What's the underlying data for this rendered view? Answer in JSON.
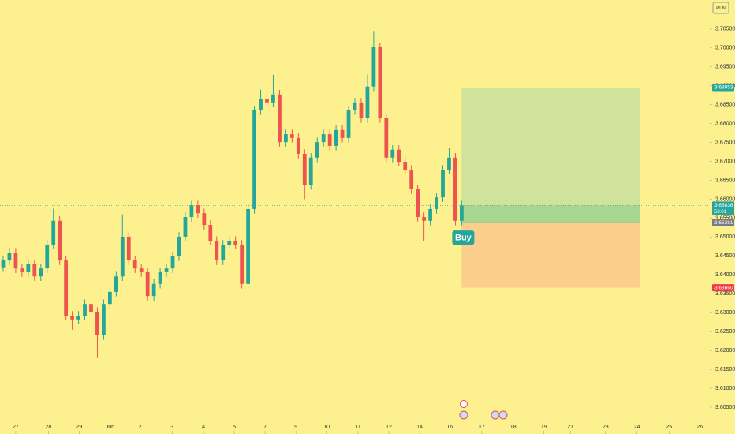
{
  "chart_data": {
    "type": "candlestick",
    "currency": "PLN",
    "colors": {
      "up": "#26a69a",
      "down": "#ef5350",
      "background": "#fcf18e"
    },
    "xlim": [
      0,
      113
    ],
    "xticks": [
      {
        "value": 2.5,
        "label": "27"
      },
      {
        "value": 7.7,
        "label": "28"
      },
      {
        "value": 12.6,
        "label": "29"
      },
      {
        "value": 17.5,
        "label": "Jun"
      },
      {
        "value": 22.3,
        "label": "2"
      },
      {
        "value": 27.4,
        "label": "3"
      },
      {
        "value": 32.4,
        "label": "4"
      },
      {
        "value": 37.3,
        "label": "5"
      },
      {
        "value": 42.2,
        "label": "7"
      },
      {
        "value": 47.1,
        "label": "9"
      },
      {
        "value": 52,
        "label": "10"
      },
      {
        "value": 57,
        "label": "11"
      },
      {
        "value": 61.9,
        "label": "12"
      },
      {
        "value": 66.8,
        "label": "14"
      },
      {
        "value": 71.6,
        "label": "16"
      },
      {
        "value": 76.7,
        "label": "17"
      },
      {
        "value": 81.7,
        "label": "18"
      },
      {
        "value": 86.6,
        "label": "19"
      },
      {
        "value": 90.8,
        "label": "21"
      },
      {
        "value": 96.4,
        "label": "23"
      },
      {
        "value": 101.4,
        "label": "24"
      },
      {
        "value": 106.5,
        "label": "25"
      },
      {
        "value": 111.4,
        "label": "26"
      }
    ],
    "ylim": [
      3.5979,
      3.7127
    ],
    "yticks": [
      {
        "value": 3.605,
        "label": "3.60500"
      },
      {
        "value": 3.61,
        "label": "3.61000"
      },
      {
        "value": 3.615,
        "label": "3.61500"
      },
      {
        "value": 3.62,
        "label": "3.62000"
      },
      {
        "value": 3.625,
        "label": "3.62500"
      },
      {
        "value": 3.63,
        "label": "3.63000"
      },
      {
        "value": 3.635,
        "label": "3.63500"
      },
      {
        "value": 3.64,
        "label": "3.64000"
      },
      {
        "value": 3.645,
        "label": "3.64500"
      },
      {
        "value": 3.65,
        "label": "3.65000"
      },
      {
        "value": 3.655,
        "label": "3.65500"
      },
      {
        "value": 3.66,
        "label": "3.66000"
      },
      {
        "value": 3.665,
        "label": "3.66500"
      },
      {
        "value": 3.67,
        "label": "3.67000"
      },
      {
        "value": 3.675,
        "label": "3.67500"
      },
      {
        "value": 3.68,
        "label": "3.68000"
      },
      {
        "value": 3.685,
        "label": "3.68500"
      },
      {
        "value": 3.69,
        "label": "3.69000"
      },
      {
        "value": 3.695,
        "label": "3.69500"
      },
      {
        "value": 3.7,
        "label": "3.70000"
      },
      {
        "value": 3.705,
        "label": "3.70500"
      }
    ],
    "open": [
      3.642,
      3.6438,
      3.6459,
      3.6417,
      3.6407,
      3.6428,
      3.6396,
      3.6417,
      3.648,
      3.6543,
      3.6438,
      3.6292,
      3.6282,
      3.6292,
      3.6323,
      3.6302,
      3.624,
      3.6323,
      3.6355,
      3.6396,
      3.6501,
      3.6438,
      3.6417,
      3.6407,
      3.6344,
      3.6376,
      3.6407,
      3.6417,
      3.6449,
      3.6501,
      3.6553,
      3.6584,
      3.6563,
      3.6532,
      3.649,
      3.6438,
      3.648,
      3.649,
      3.648,
      3.6376,
      3.6574,
      3.6835,
      3.6866,
      3.6856,
      3.6877,
      3.6751,
      3.6772,
      3.6762,
      3.672,
      3.6637,
      3.671,
      3.6751,
      3.6772,
      3.6741,
      3.6783,
      3.6762,
      3.6835,
      3.6856,
      3.6814,
      3.6898,
      3.7002,
      3.6814,
      3.671,
      3.6731,
      3.6699,
      3.6678,
      3.6626,
      3.6553,
      3.6543,
      3.6574,
      3.6605,
      3.6678,
      3.671,
      3.6543
    ],
    "high": [
      3.645,
      3.6471,
      3.6471,
      3.6429,
      3.644,
      3.644,
      3.6429,
      3.6492,
      3.6575,
      3.6555,
      3.645,
      3.6304,
      3.6304,
      3.6335,
      3.6335,
      3.6314,
      3.6335,
      3.6367,
      3.6408,
      3.656,
      3.6513,
      3.645,
      3.6429,
      3.6419,
      3.6388,
      3.6419,
      3.6429,
      3.6461,
      3.6513,
      3.6565,
      3.6596,
      3.6596,
      3.6575,
      3.6544,
      3.6502,
      3.6492,
      3.6502,
      3.6502,
      3.6492,
      3.6586,
      3.6847,
      3.689,
      3.6878,
      3.6929,
      3.6889,
      3.6784,
      3.6784,
      3.6774,
      3.6732,
      3.6722,
      3.6763,
      3.6784,
      3.6784,
      3.6795,
      3.6795,
      3.6847,
      3.6868,
      3.6868,
      3.693,
      3.7045,
      3.7014,
      3.6826,
      3.6743,
      3.6743,
      3.6711,
      3.669,
      3.6638,
      3.6565,
      3.6586,
      3.6617,
      3.669,
      3.6735,
      3.6722,
      3.6596
    ],
    "low": [
      3.6408,
      3.6426,
      3.6405,
      3.6395,
      3.6395,
      3.6384,
      3.6384,
      3.6405,
      3.6468,
      3.6426,
      3.628,
      3.6255,
      3.627,
      3.628,
      3.629,
      3.618,
      3.6228,
      3.6311,
      3.6343,
      3.6384,
      3.6426,
      3.6405,
      3.6395,
      3.6332,
      3.6332,
      3.6364,
      3.6395,
      3.6405,
      3.6437,
      3.6489,
      3.6541,
      3.6551,
      3.652,
      3.6478,
      3.6426,
      3.6426,
      3.6468,
      3.6468,
      3.6364,
      3.6364,
      3.6562,
      3.6823,
      3.6844,
      3.6844,
      3.6739,
      3.6739,
      3.675,
      3.6708,
      3.66,
      3.6625,
      3.6698,
      3.6739,
      3.6729,
      3.6729,
      3.675,
      3.675,
      3.6823,
      3.6802,
      3.6802,
      3.6886,
      3.6802,
      3.6698,
      3.6698,
      3.6687,
      3.6666,
      3.6614,
      3.6541,
      3.649,
      3.6531,
      3.6562,
      3.6593,
      3.6666,
      3.6531,
      3.6531
    ],
    "close": [
      3.6438,
      3.6459,
      3.6417,
      3.6407,
      3.6428,
      3.6396,
      3.6417,
      3.648,
      3.6543,
      3.6438,
      3.6292,
      3.6282,
      3.6292,
      3.6323,
      3.6302,
      3.624,
      3.6323,
      3.6355,
      3.6396,
      3.6501,
      3.6438,
      3.6417,
      3.6407,
      3.6344,
      3.6376,
      3.6407,
      3.6417,
      3.6449,
      3.6501,
      3.6553,
      3.6584,
      3.6563,
      3.6532,
      3.649,
      3.6438,
      3.648,
      3.649,
      3.648,
      3.6376,
      3.6574,
      3.6835,
      3.6866,
      3.6856,
      3.6877,
      3.6751,
      3.6772,
      3.6762,
      3.672,
      3.6637,
      3.671,
      3.6751,
      3.6772,
      3.6741,
      3.6783,
      3.6762,
      3.6835,
      3.6856,
      3.6814,
      3.6898,
      3.7002,
      3.6814,
      3.671,
      3.6731,
      3.6699,
      3.6678,
      3.6626,
      3.6553,
      3.6543,
      3.6574,
      3.6605,
      3.6678,
      3.671,
      3.6543,
      3.65836
    ],
    "last_price": {
      "value": 3.65836,
      "label": "3.65836",
      "countdown": "58:01",
      "color": "#26a69a"
    },
    "position": {
      "label": "Buy",
      "x_start": 73.5,
      "x_end": 101.9,
      "entry": {
        "value": 3.65381,
        "label": "3.65381",
        "color": "#787b86"
      },
      "target": {
        "value": 3.68953,
        "label": "3.68953",
        "color": "#26a69a"
      },
      "stop": {
        "value": 3.6366,
        "label": "3.63660",
        "color": "#f23645"
      }
    }
  }
}
